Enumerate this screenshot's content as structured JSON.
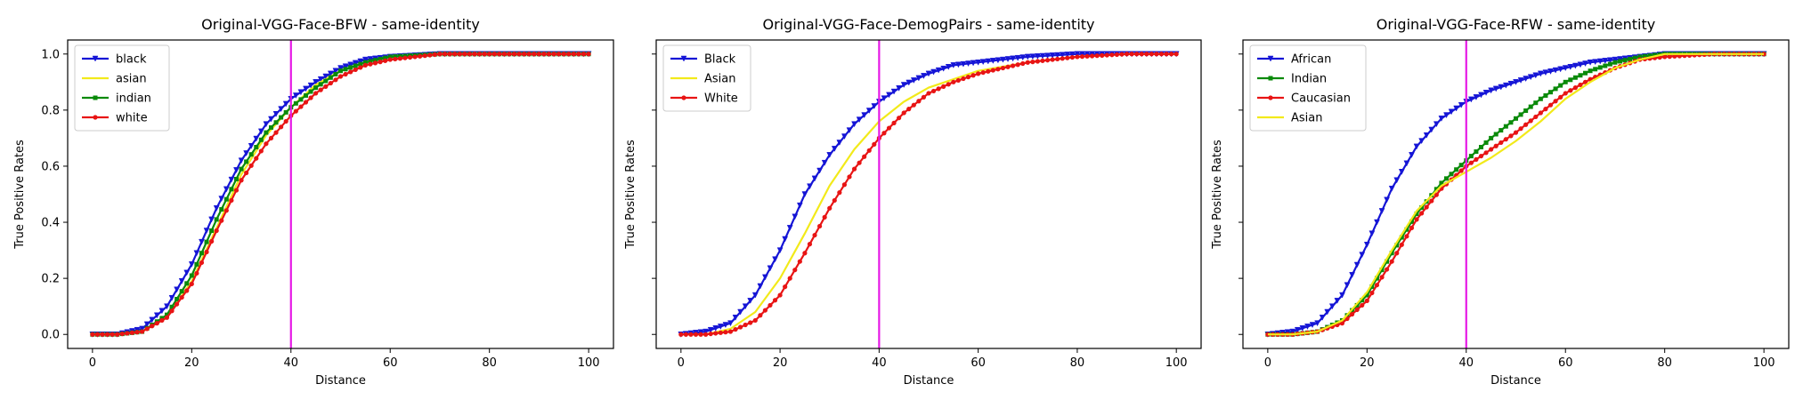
{
  "chart_data": [
    {
      "type": "line",
      "title": "Original-VGG-Face-BFW - same-identity",
      "xlabel": "Distance",
      "ylabel": "True Positive Rates",
      "xlim": [
        -5,
        105
      ],
      "ylim": [
        -0.05,
        1.05
      ],
      "xticks": [
        "0",
        "20",
        "40",
        "60",
        "80",
        "100"
      ],
      "yticks": [
        "0.0",
        "0.2",
        "0.4",
        "0.6",
        "0.8",
        "1.0"
      ],
      "show_ytick_labels": true,
      "threshold_x": 40,
      "threshold_color": "#e619e6",
      "legend_position": "upper-left",
      "x": [
        0,
        5,
        10,
        15,
        20,
        25,
        30,
        35,
        40,
        45,
        50,
        55,
        60,
        70,
        80,
        90,
        100
      ],
      "series": [
        {
          "name": "black",
          "color": "#1515d6",
          "marker": "triangle-down",
          "values": [
            0.0,
            0.0,
            0.02,
            0.1,
            0.25,
            0.45,
            0.62,
            0.75,
            0.84,
            0.9,
            0.95,
            0.98,
            0.99,
            1.0,
            1.0,
            1.0,
            1.0
          ]
        },
        {
          "name": "asian",
          "color": "#f2ea1a",
          "marker": "none",
          "values": [
            0.0,
            0.0,
            0.01,
            0.06,
            0.19,
            0.38,
            0.57,
            0.71,
            0.81,
            0.89,
            0.94,
            0.97,
            0.99,
            1.0,
            1.0,
            1.0,
            1.0
          ]
        },
        {
          "name": "indian",
          "color": "#0a8a0a",
          "marker": "square",
          "values": [
            0.0,
            0.0,
            0.01,
            0.07,
            0.21,
            0.41,
            0.59,
            0.72,
            0.81,
            0.88,
            0.94,
            0.97,
            0.99,
            1.0,
            1.0,
            1.0,
            1.0
          ]
        },
        {
          "name": "white",
          "color": "#e81414",
          "marker": "circle",
          "values": [
            0.0,
            0.0,
            0.01,
            0.06,
            0.18,
            0.37,
            0.55,
            0.68,
            0.78,
            0.86,
            0.92,
            0.96,
            0.98,
            1.0,
            1.0,
            1.0,
            1.0
          ]
        }
      ]
    },
    {
      "type": "line",
      "title": "Original-VGG-Face-DemogPairs - same-identity",
      "xlabel": "Distance",
      "ylabel": "True Positive Rates",
      "xlim": [
        -5,
        105
      ],
      "ylim": [
        -0.05,
        1.05
      ],
      "xticks": [
        "0",
        "20",
        "40",
        "60",
        "80",
        "100"
      ],
      "yticks": [
        "0.0",
        "0.2",
        "0.4",
        "0.6",
        "0.8",
        "1.0"
      ],
      "show_ytick_labels": false,
      "threshold_x": 40,
      "threshold_color": "#e619e6",
      "legend_position": "upper-left",
      "x": [
        0,
        5,
        10,
        15,
        20,
        25,
        30,
        35,
        40,
        45,
        50,
        55,
        60,
        70,
        80,
        90,
        100
      ],
      "series": [
        {
          "name": "Black",
          "color": "#1515d6",
          "marker": "triangle-down",
          "values": [
            0.0,
            0.01,
            0.04,
            0.14,
            0.3,
            0.5,
            0.64,
            0.75,
            0.83,
            0.89,
            0.93,
            0.96,
            0.97,
            0.99,
            1.0,
            1.0,
            1.0
          ]
        },
        {
          "name": "Asian",
          "color": "#f2ea1a",
          "marker": "none",
          "values": [
            0.0,
            0.0,
            0.02,
            0.08,
            0.2,
            0.36,
            0.53,
            0.66,
            0.76,
            0.83,
            0.88,
            0.91,
            0.94,
            0.97,
            0.99,
            1.0,
            1.0
          ]
        },
        {
          "name": "White",
          "color": "#e81414",
          "marker": "circle",
          "values": [
            0.0,
            0.0,
            0.01,
            0.05,
            0.14,
            0.29,
            0.45,
            0.59,
            0.7,
            0.79,
            0.86,
            0.9,
            0.93,
            0.97,
            0.99,
            1.0,
            1.0
          ]
        }
      ]
    },
    {
      "type": "line",
      "title": "Original-VGG-Face-RFW - same-identity",
      "xlabel": "Distance",
      "ylabel": "True Positive Rates",
      "xlim": [
        -5,
        105
      ],
      "ylim": [
        -0.05,
        1.05
      ],
      "xticks": [
        "0",
        "20",
        "40",
        "60",
        "80",
        "100"
      ],
      "yticks": [
        "0.0",
        "0.2",
        "0.4",
        "0.6",
        "0.8",
        "1.0"
      ],
      "show_ytick_labels": false,
      "threshold_x": 40,
      "threshold_color": "#e619e6",
      "legend_position": "upper-left",
      "x": [
        0,
        5,
        10,
        15,
        20,
        25,
        30,
        35,
        40,
        45,
        50,
        55,
        60,
        65,
        70,
        75,
        80,
        90,
        100
      ],
      "series": [
        {
          "name": "African",
          "color": "#1515d6",
          "marker": "triangle-down",
          "values": [
            0.0,
            0.01,
            0.04,
            0.14,
            0.32,
            0.52,
            0.67,
            0.77,
            0.83,
            0.87,
            0.9,
            0.93,
            0.95,
            0.97,
            0.98,
            0.99,
            1.0,
            1.0,
            1.0
          ]
        },
        {
          "name": "Indian",
          "color": "#0a8a0a",
          "marker": "square",
          "values": [
            0.0,
            0.0,
            0.01,
            0.05,
            0.14,
            0.29,
            0.43,
            0.54,
            0.62,
            0.7,
            0.77,
            0.84,
            0.9,
            0.94,
            0.97,
            0.99,
            1.0,
            1.0,
            1.0
          ]
        },
        {
          "name": "Caucasian",
          "color": "#e81414",
          "marker": "circle",
          "values": [
            0.0,
            0.0,
            0.01,
            0.04,
            0.12,
            0.26,
            0.41,
            0.52,
            0.6,
            0.66,
            0.72,
            0.79,
            0.86,
            0.91,
            0.95,
            0.98,
            0.99,
            1.0,
            1.0
          ]
        },
        {
          "name": "Asian",
          "color": "#f2ea1a",
          "marker": "none",
          "values": [
            0.0,
            0.0,
            0.01,
            0.05,
            0.15,
            0.3,
            0.44,
            0.53,
            0.58,
            0.63,
            0.69,
            0.76,
            0.84,
            0.9,
            0.95,
            0.98,
            1.0,
            1.0,
            1.0
          ]
        }
      ]
    }
  ]
}
